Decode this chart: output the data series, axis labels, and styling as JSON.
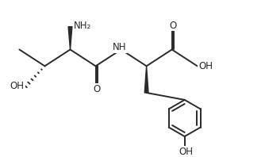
{
  "background": "#ffffff",
  "line_color": "#2a2a2a",
  "line_width": 1.4,
  "font_size": 8.5,
  "figsize": [
    3.34,
    1.98
  ],
  "dpi": 100,
  "xlim": [
    0,
    10
  ],
  "ylim": [
    0,
    6
  ]
}
